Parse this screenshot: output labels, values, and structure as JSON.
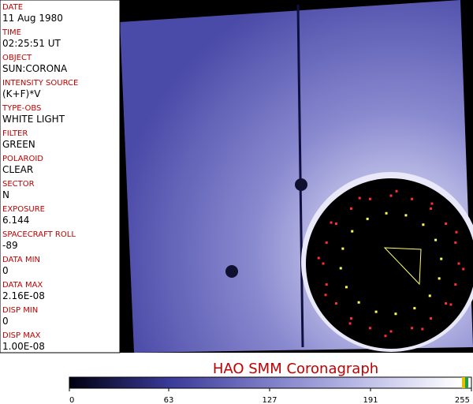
{
  "fields": [
    {
      "label": "DATE",
      "value": "11 Aug 1980"
    },
    {
      "label": "TIME",
      "value": "02:25:51 UT"
    },
    {
      "label": "OBJECT",
      "value": "SUN:CORONA"
    },
    {
      "label": "INTENSITY SOURCE",
      "value": "(K+F)*V"
    },
    {
      "label": "TYPE-OBS",
      "value": "WHITE LIGHT"
    },
    {
      "label": "FILTER",
      "value": "GREEN"
    },
    {
      "label": "POLAROID",
      "value": "CLEAR"
    },
    {
      "label": "SECTOR",
      "value": "N"
    },
    {
      "label": "EXPOSURE",
      "value": "6.144"
    },
    {
      "label": "SPACECRAFT ROLL",
      "value": "-89"
    },
    {
      "label": "DATA MIN",
      "value": "0"
    },
    {
      "label": "DATA MAX",
      "value": "2.16E-08"
    },
    {
      "label": "DISP MIN",
      "value": "0"
    },
    {
      "label": "DISP MAX",
      "value": "1.00E-08"
    }
  ],
  "title": "HAO  SMM Coronagraph",
  "colorbar": {
    "ticks": [
      0,
      63,
      127,
      191,
      255
    ]
  }
}
